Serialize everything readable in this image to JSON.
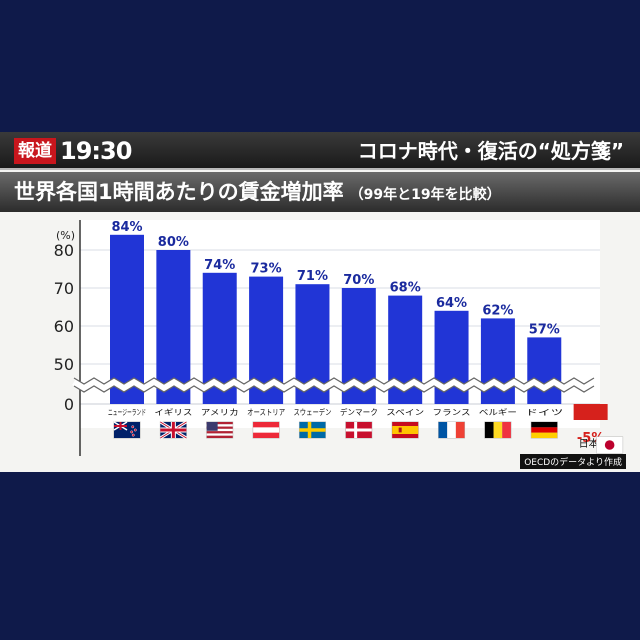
{
  "header": {
    "program_badge": "報道",
    "program_time": "19:30",
    "headline": "コロナ時代・復活の“処方箋”"
  },
  "chart_data": {
    "type": "bar",
    "title": "世界各国1時間あたりの賃金増加率",
    "subtitle": "（99年と19年を比較）",
    "ylabel": "(%)",
    "y_ticks": [
      0,
      50,
      60,
      70,
      80
    ],
    "axis_break": true,
    "categories": [
      "ニュージーランド",
      "イギリス",
      "アメリカ",
      "オーストリア",
      "スウェーデン",
      "デンマーク",
      "スペイン",
      "フランス",
      "ベルギー",
      "ドイツ",
      "日本"
    ],
    "values": [
      84,
      80,
      74,
      73,
      71,
      70,
      68,
      64,
      62,
      57,
      -5
    ],
    "value_labels": [
      "84%",
      "80%",
      "74%",
      "73%",
      "71%",
      "70%",
      "68%",
      "64%",
      "62%",
      "57%",
      "-5%"
    ],
    "bar_color": "#2135d6",
    "negative_bar_color": "#d6211c",
    "value_label_color": "#1a2a9e",
    "negative_label_color": "#d6211c",
    "grid": true,
    "flags": [
      "flag-new-zealand",
      "flag-united-kingdom",
      "flag-united-states",
      "flag-austria",
      "flag-sweden",
      "flag-denmark",
      "flag-spain",
      "flag-france",
      "flag-belgium",
      "flag-germany",
      "flag-japan"
    ],
    "source": "OECDのデータより作成"
  }
}
